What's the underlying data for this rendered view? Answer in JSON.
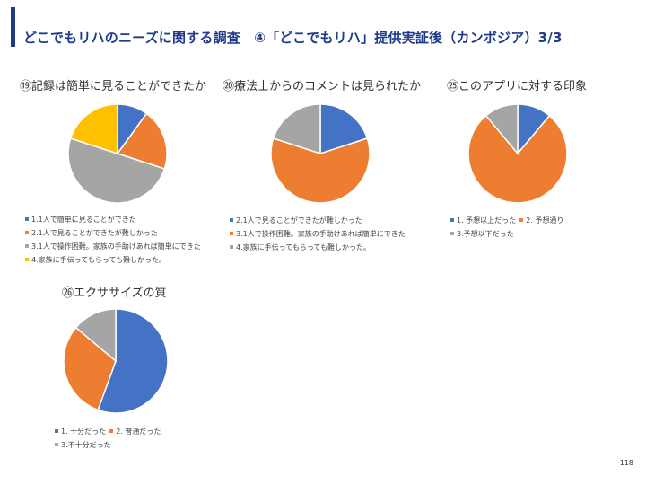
{
  "page": {
    "title": "どこでもリハのニーズに関する調査　④「どこでもリハ」提供実証後（カンボジア）3/3",
    "page_number": "118",
    "accent_color": "#1f3a8a"
  },
  "chart_data": [
    {
      "type": "pie",
      "title": "⑲記録は簡単に見ることができたか",
      "legend_layout": "stacked",
      "slices": [
        {
          "label": "1.1人で簡単に見ることができた",
          "value": 10,
          "color": "#4472c4"
        },
        {
          "label": "2.1人で見ることができたが難しかった",
          "value": 20,
          "color": "#ed7d31"
        },
        {
          "label": "3.1人で操作困難。家族の手助けあれば簡単にできた",
          "value": 50,
          "color": "#a5a5a5"
        },
        {
          "label": "4.家族に手伝ってもらっても難しかった。",
          "value": 20,
          "color": "#ffc000"
        }
      ]
    },
    {
      "type": "pie",
      "title": "⑳療法士からのコメントは見られたか",
      "legend_layout": "stacked",
      "slices": [
        {
          "label": "2.1人で見ることができたが難しかった",
          "value": 20,
          "color": "#4472c4"
        },
        {
          "label": "3.1人で操作困難。家族の手助けあれば簡単にできた",
          "value": 60,
          "color": "#ed7d31"
        },
        {
          "label": "4.家族に手伝ってもらっても難しかった。",
          "value": 20,
          "color": "#a5a5a5"
        }
      ]
    },
    {
      "type": "pie",
      "title": "㉕このアプリに対する印象",
      "legend_layout": "inline",
      "slices": [
        {
          "label": "1. 予想以上だった",
          "value": 11.1,
          "color": "#4472c4"
        },
        {
          "label": "2. 予想通り",
          "value": 77.8,
          "color": "#ed7d31"
        },
        {
          "label": "3.予想以下だった",
          "value": 11.1,
          "color": "#a5a5a5"
        }
      ]
    },
    {
      "type": "pie",
      "title": "㉖エクササイズの質",
      "legend_layout": "inline",
      "slices": [
        {
          "label": "1. 十分だった",
          "value": 55.6,
          "color": "#4472c4"
        },
        {
          "label": "2. 普通だった",
          "value": 30.6,
          "color": "#ed7d31"
        },
        {
          "label": "3.不十分だった",
          "value": 13.9,
          "color": "#a5a5a5"
        }
      ]
    }
  ]
}
